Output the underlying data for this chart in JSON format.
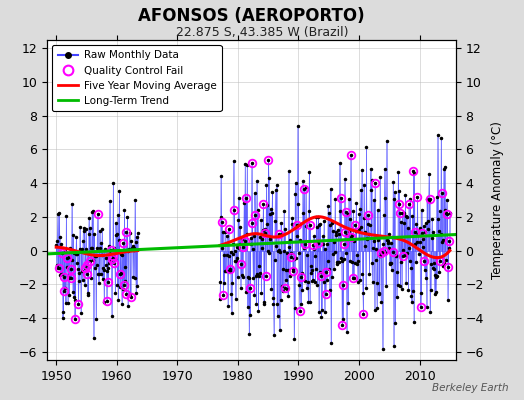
{
  "title": "AFONSOS (AEROPORTO)",
  "subtitle": "22.875 S, 43.385 W (Brazil)",
  "ylabel_right": "Temperature Anomaly (°C)",
  "watermark": "Berkeley Earth",
  "xlim": [
    1948.5,
    2016
  ],
  "ylim": [
    -6.5,
    12.5
  ],
  "yticks": [
    -6,
    -4,
    -2,
    0,
    2,
    4,
    6,
    8,
    10,
    12
  ],
  "xticks": [
    1950,
    1960,
    1970,
    1980,
    1990,
    2000,
    2010
  ],
  "bg_color": "#dcdcdc",
  "plot_bg_color": "#ffffff",
  "raw_line_color": "#4444ff",
  "raw_dot_color": "#000000",
  "qc_fail_color": "#ff00ff",
  "moving_avg_color": "#ff0000",
  "trend_color": "#00bb00",
  "seed": 42,
  "start_year": 1950.0,
  "end_year": 2015.0,
  "gap_start": 1963.5,
  "gap_end": 1977.0,
  "trend_x": [
    1948.5,
    2016.0
  ],
  "trend_y": [
    -0.2,
    0.95
  ],
  "moving_avg_shape": {
    "x_anchors": [
      1950,
      1953,
      1957,
      1961,
      1977,
      1980,
      1983,
      1986,
      1989,
      1993,
      1997,
      2001,
      2005,
      2008,
      2011,
      2015
    ],
    "y_anchors": [
      0.2,
      0.0,
      -0.3,
      -0.1,
      0.3,
      0.7,
      1.0,
      0.8,
      1.2,
      2.0,
      1.5,
      1.0,
      0.8,
      0.5,
      -0.2,
      0.0
    ]
  },
  "n_qc_fails": 90,
  "data_std": 1.8
}
